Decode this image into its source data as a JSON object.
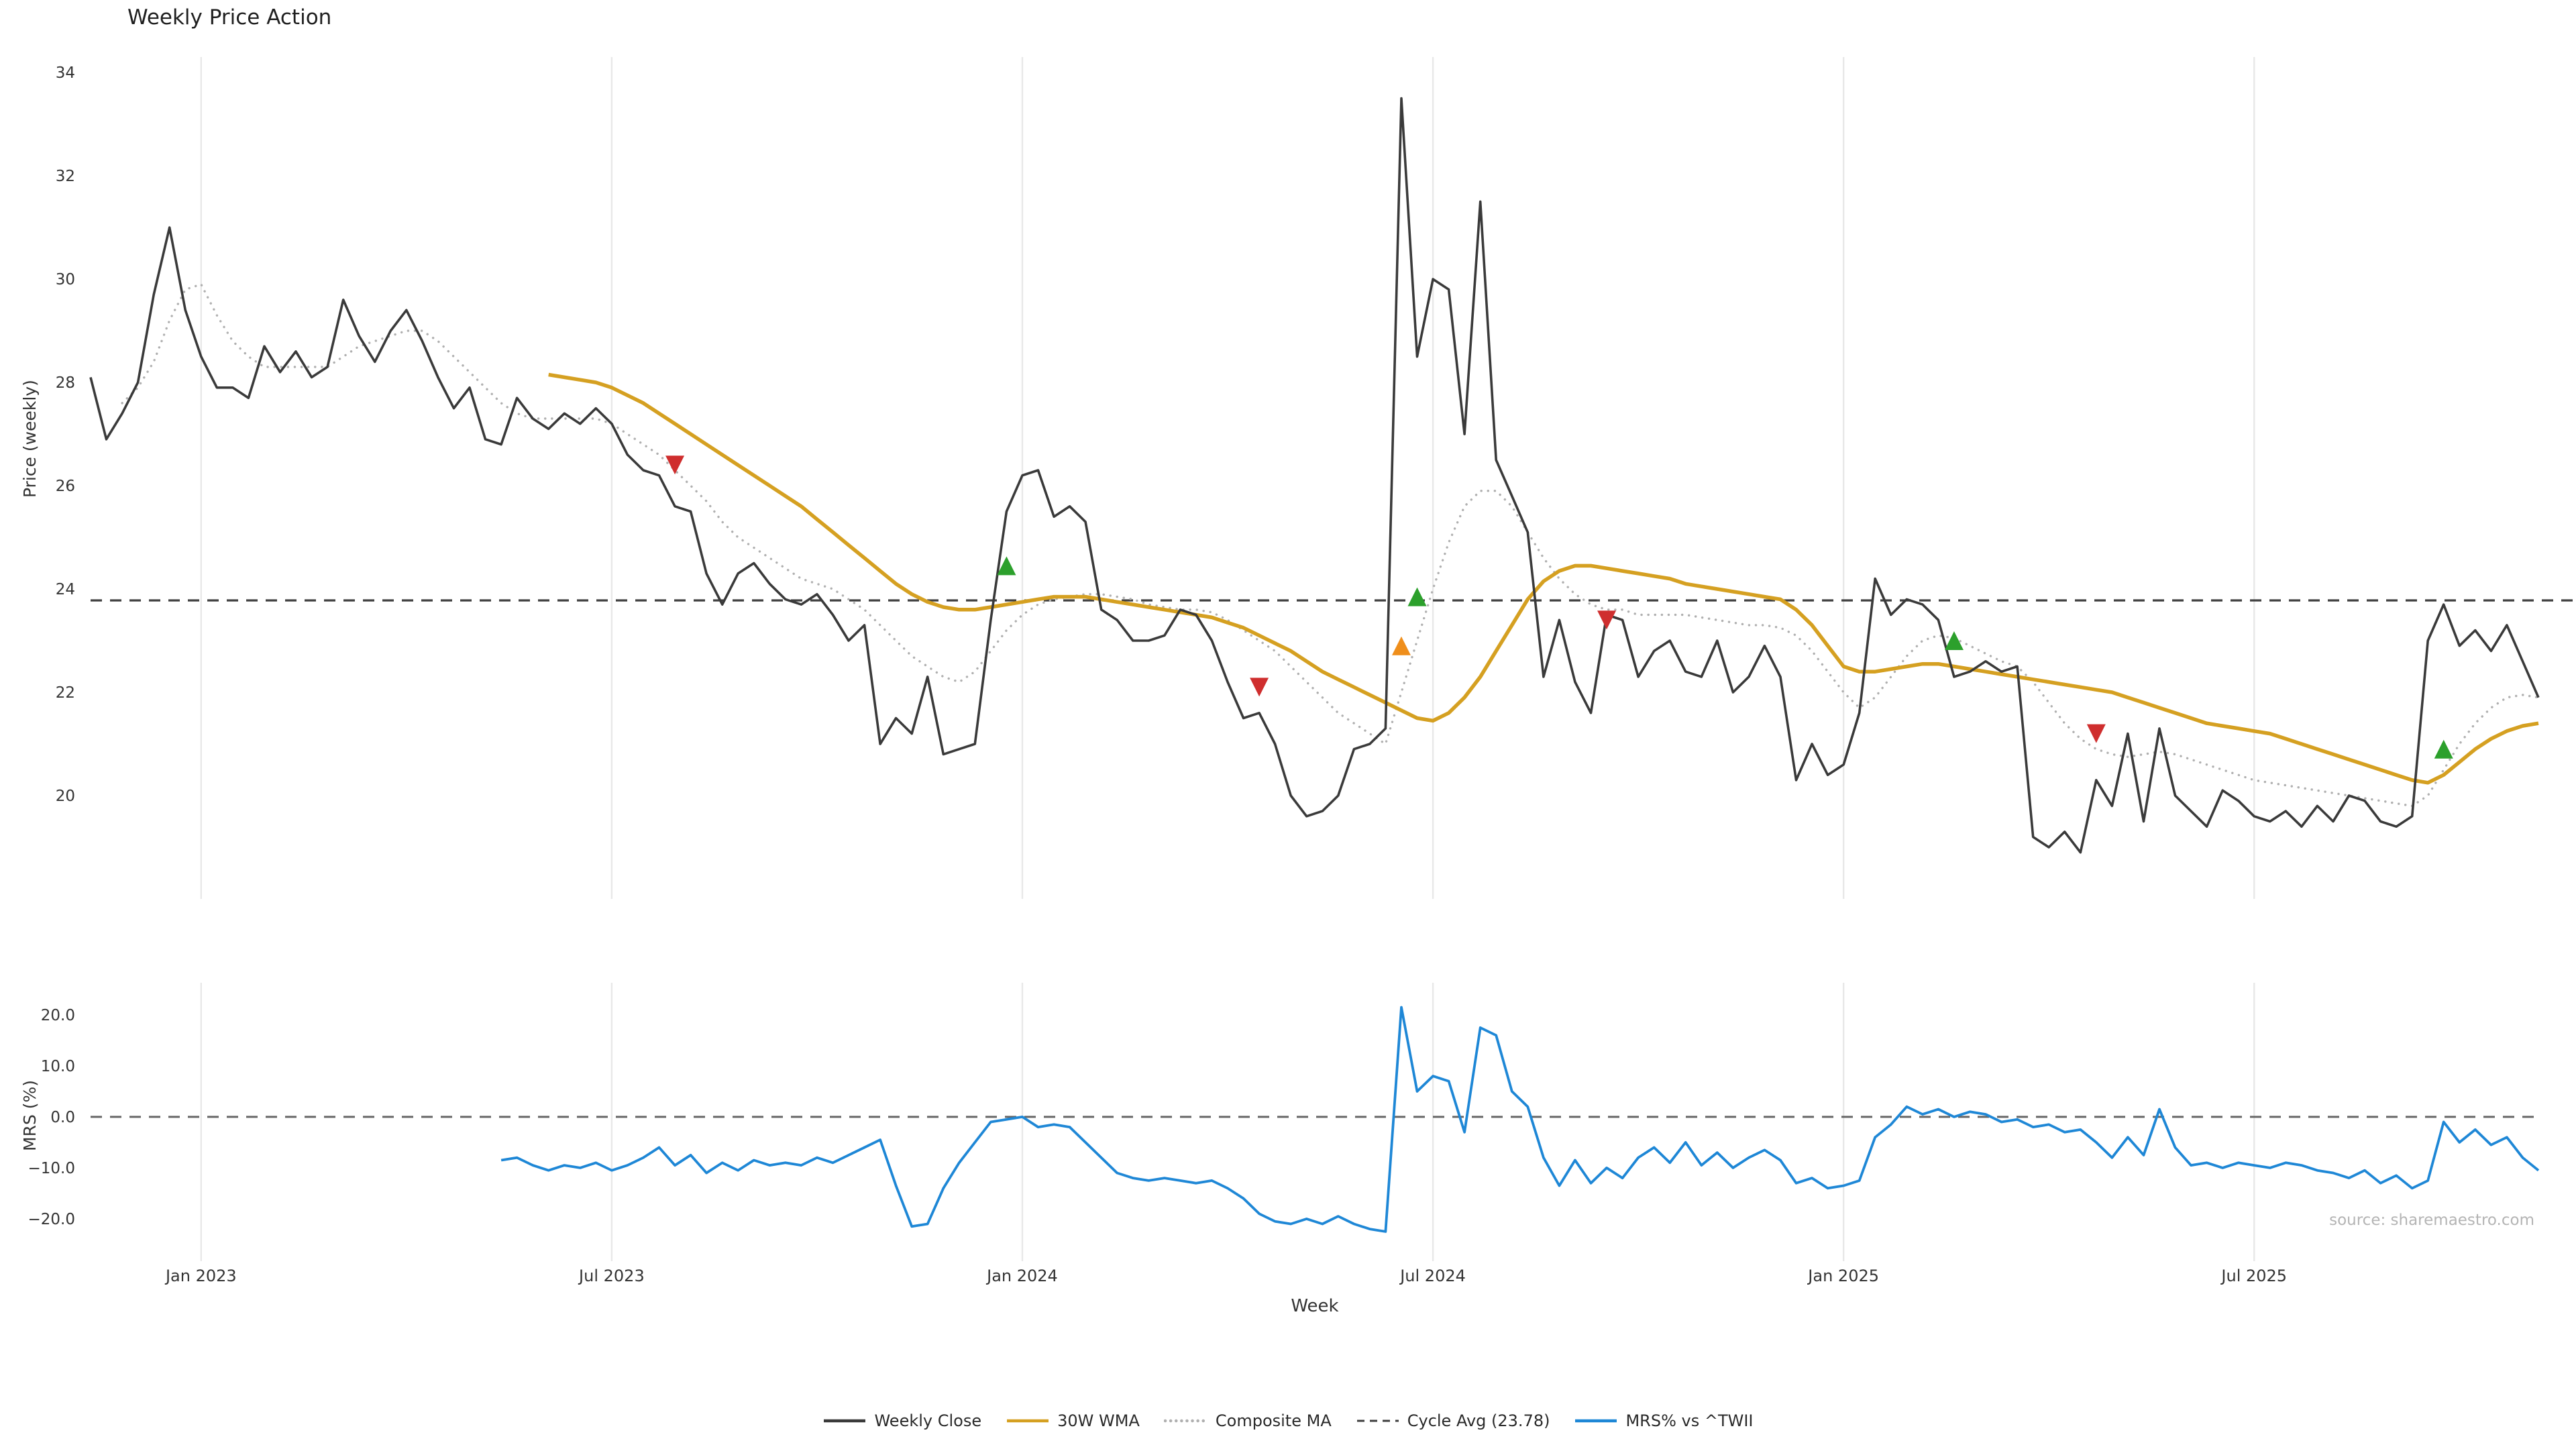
{
  "chart_data": {
    "type": "line",
    "title": "Weekly Price Action",
    "source": "source: sharemaestro.com",
    "xlabel": "Week",
    "weeks": 156,
    "x_tick_labels": [
      "Jan 2023",
      "Jul 2023",
      "Jan 2024",
      "Jul 2024",
      "Jan 2025",
      "Jul 2025"
    ],
    "x_tick_indices": [
      7,
      33,
      59,
      85,
      111,
      137
    ],
    "grid_color": "#e8e8e8",
    "panels": [
      {
        "name": "price",
        "ylabel": "Price (weekly)",
        "ylim": [
          18.0,
          34.3
        ],
        "yticks": [
          20,
          22,
          24,
          26,
          28,
          30,
          32,
          34
        ],
        "ytick_labels": [
          "20",
          "22",
          "24",
          "26",
          "28",
          "30",
          "32",
          "34"
        ],
        "cycle_avg": 23.78,
        "cycle_avg_color": "#3f3f3f",
        "series": [
          {
            "name": "Weekly Close",
            "color": "#3a3a3a",
            "style": "solid",
            "values": [
              28.1,
              26.9,
              27.4,
              28.0,
              29.7,
              31.0,
              29.4,
              28.5,
              27.9,
              27.9,
              27.7,
              28.7,
              28.2,
              28.6,
              28.1,
              28.3,
              29.6,
              28.9,
              28.4,
              29.0,
              29.4,
              28.8,
              28.1,
              27.5,
              27.9,
              26.9,
              26.8,
              27.7,
              27.3,
              27.1,
              27.4,
              27.2,
              27.5,
              27.2,
              26.6,
              26.3,
              26.2,
              25.6,
              25.5,
              24.3,
              23.7,
              24.3,
              24.5,
              24.1,
              23.8,
              23.7,
              23.9,
              23.5,
              23.0,
              23.3,
              21.0,
              21.5,
              21.2,
              22.3,
              20.8,
              20.9,
              21.0,
              23.4,
              25.5,
              26.2,
              26.3,
              25.4,
              25.6,
              25.3,
              23.6,
              23.4,
              23.0,
              23.0,
              23.1,
              23.6,
              23.5,
              23.0,
              22.2,
              21.5,
              21.6,
              21.0,
              20.0,
              19.6,
              19.7,
              20.0,
              20.9,
              21.0,
              21.3,
              33.5,
              28.5,
              30.0,
              29.8,
              27.0,
              31.5,
              26.5,
              25.8,
              25.1,
              22.3,
              23.4,
              22.2,
              21.6,
              23.5,
              23.4,
              22.3,
              22.8,
              23.0,
              22.4,
              22.3,
              23.0,
              22.0,
              22.3,
              22.9,
              22.3,
              20.3,
              21.0,
              20.4,
              20.6,
              21.6,
              24.2,
              23.5,
              23.8,
              23.7,
              23.4,
              22.3,
              22.4,
              22.6,
              22.4,
              22.5,
              19.2,
              19.0,
              19.3,
              18.9,
              20.3,
              19.8,
              21.2,
              19.5,
              21.3,
              20.0,
              19.7,
              19.4,
              20.1,
              19.9,
              19.6,
              19.5,
              19.7,
              19.4,
              19.8,
              19.5,
              20.0,
              19.9,
              19.5,
              19.4,
              19.6,
              23.0,
              23.7,
              22.9,
              23.2,
              22.8,
              23.3,
              22.6,
              21.9
            ]
          },
          {
            "name": "30W WMA",
            "color": "#d5a021",
            "style": "solid",
            "values": [
              null,
              null,
              null,
              null,
              null,
              null,
              null,
              null,
              null,
              null,
              null,
              null,
              null,
              null,
              null,
              null,
              null,
              null,
              null,
              null,
              null,
              null,
              null,
              null,
              null,
              null,
              null,
              null,
              null,
              28.15,
              28.1,
              28.05,
              28.0,
              27.9,
              27.75,
              27.6,
              27.4,
              27.2,
              27.0,
              26.8,
              26.6,
              26.4,
              26.2,
              26.0,
              25.8,
              25.6,
              25.35,
              25.1,
              24.85,
              24.6,
              24.35,
              24.1,
              23.9,
              23.75,
              23.65,
              23.6,
              23.6,
              23.65,
              23.7,
              23.75,
              23.8,
              23.85,
              23.85,
              23.85,
              23.8,
              23.75,
              23.7,
              23.65,
              23.6,
              23.55,
              23.5,
              23.45,
              23.35,
              23.25,
              23.1,
              22.95,
              22.8,
              22.6,
              22.4,
              22.25,
              22.1,
              21.95,
              21.8,
              21.65,
              21.5,
              21.45,
              21.6,
              21.9,
              22.3,
              22.8,
              23.3,
              23.8,
              24.15,
              24.35,
              24.45,
              24.45,
              24.4,
              24.35,
              24.3,
              24.25,
              24.2,
              24.1,
              24.05,
              24.0,
              23.95,
              23.9,
              23.85,
              23.8,
              23.6,
              23.3,
              22.9,
              22.5,
              22.4,
              22.4,
              22.45,
              22.5,
              22.55,
              22.55,
              22.5,
              22.45,
              22.4,
              22.35,
              22.3,
              22.25,
              22.2,
              22.15,
              22.1,
              22.05,
              22.0,
              21.9,
              21.8,
              21.7,
              21.6,
              21.5,
              21.4,
              21.35,
              21.3,
              21.25,
              21.2,
              21.1,
              21.0,
              20.9,
              20.8,
              20.7,
              20.6,
              20.5,
              20.4,
              20.3,
              20.25,
              20.4,
              20.65,
              20.9,
              21.1,
              21.25,
              21.35,
              21.4
            ]
          },
          {
            "name": "Composite MA",
            "color": "#b0b0b0",
            "style": "dotted",
            "values": [
              null,
              null,
              27.6,
              27.9,
              28.4,
              29.2,
              29.8,
              29.9,
              29.3,
              28.8,
              28.5,
              28.3,
              28.3,
              28.3,
              28.3,
              28.3,
              28.5,
              28.7,
              28.8,
              28.9,
              29.0,
              29.0,
              28.8,
              28.5,
              28.2,
              27.9,
              27.6,
              27.4,
              27.3,
              27.3,
              27.3,
              27.3,
              27.3,
              27.2,
              27.0,
              26.8,
              26.6,
              26.3,
              26.0,
              25.7,
              25.3,
              25.0,
              24.8,
              24.6,
              24.4,
              24.2,
              24.1,
              24.0,
              23.8,
              23.6,
              23.3,
              23.0,
              22.7,
              22.5,
              22.3,
              22.2,
              22.4,
              22.8,
              23.2,
              23.5,
              23.7,
              23.8,
              23.85,
              23.9,
              23.9,
              23.85,
              23.8,
              23.7,
              23.65,
              23.6,
              23.6,
              23.55,
              23.4,
              23.2,
              23.0,
              22.8,
              22.5,
              22.2,
              21.9,
              21.6,
              21.4,
              21.2,
              21.0,
              22.0,
              23.0,
              24.0,
              24.9,
              25.6,
              25.9,
              25.9,
              25.6,
              25.1,
              24.6,
              24.2,
              23.9,
              23.7,
              23.6,
              23.6,
              23.5,
              23.5,
              23.5,
              23.5,
              23.45,
              23.4,
              23.35,
              23.3,
              23.3,
              23.25,
              23.1,
              22.8,
              22.4,
              22.0,
              21.7,
              21.9,
              22.3,
              22.7,
              23.0,
              23.1,
              23.05,
              22.9,
              22.75,
              22.6,
              22.5,
              22.2,
              21.8,
              21.4,
              21.1,
              20.9,
              20.8,
              20.75,
              20.8,
              20.85,
              20.8,
              20.7,
              20.6,
              20.5,
              20.4,
              20.3,
              20.25,
              20.2,
              20.15,
              20.1,
              20.05,
              20.0,
              19.95,
              19.9,
              19.85,
              19.8,
              20.0,
              20.5,
              21.0,
              21.4,
              21.7,
              21.9,
              21.95,
              21.9
            ]
          }
        ],
        "signals": [
          {
            "index": 37,
            "value": 26.4,
            "type": "sell",
            "dir": "down",
            "color": "#cf2e2e"
          },
          {
            "index": 58,
            "value": 24.45,
            "type": "buy",
            "dir": "up",
            "color": "#2ca02c"
          },
          {
            "index": 74,
            "value": 22.1,
            "type": "sell",
            "dir": "down",
            "color": "#cf2e2e"
          },
          {
            "index": 83,
            "value": 22.9,
            "type": "alert",
            "dir": "up",
            "color": "#ef8e1b"
          },
          {
            "index": 84,
            "value": 23.85,
            "type": "buy",
            "dir": "up",
            "color": "#2ca02c"
          },
          {
            "index": 96,
            "value": 23.4,
            "type": "sell",
            "dir": "down",
            "color": "#cf2e2e"
          },
          {
            "index": 118,
            "value": 23.0,
            "type": "buy",
            "dir": "up",
            "color": "#2ca02c"
          },
          {
            "index": 127,
            "value": 21.2,
            "type": "sell",
            "dir": "down",
            "color": "#cf2e2e"
          },
          {
            "index": 149,
            "value": 20.9,
            "type": "buy",
            "dir": "up",
            "color": "#2ca02c"
          }
        ]
      },
      {
        "name": "mrs",
        "ylabel": "MRS (%)",
        "ylim": [
          -28.3,
          26.3
        ],
        "yticks": [
          20,
          10,
          0,
          -10,
          -20
        ],
        "ytick_labels": [
          "20.0",
          "10.0",
          "0.0",
          "−10.0",
          "−20.0"
        ],
        "zero_line": 0,
        "zero_line_color": "#666666",
        "series": [
          {
            "name": "MRS% vs ^TWII",
            "color": "#1e87d6",
            "style": "solid",
            "values": [
              null,
              null,
              null,
              null,
              null,
              null,
              null,
              null,
              null,
              null,
              null,
              null,
              null,
              null,
              null,
              null,
              null,
              null,
              null,
              null,
              null,
              null,
              null,
              null,
              null,
              null,
              -8.5,
              -8.0,
              -9.5,
              -10.5,
              -9.5,
              -10.0,
              -9.0,
              -10.5,
              -9.5,
              -8.0,
              -6.0,
              -9.5,
              -7.5,
              -11.0,
              -9.0,
              -10.5,
              -8.5,
              -9.5,
              -9.0,
              -9.5,
              -8.0,
              -9.0,
              -7.5,
              -6.0,
              -4.5,
              -13.5,
              -21.5,
              -21.0,
              -14.0,
              -9.0,
              -5.0,
              -1.0,
              -0.5,
              0.0,
              -2.0,
              -1.5,
              -2.0,
              -5.0,
              -8.0,
              -11.0,
              -12.0,
              -12.5,
              -12.0,
              -12.5,
              -13.0,
              -12.5,
              -14.0,
              -16.0,
              -19.0,
              -20.5,
              -21.0,
              -20.0,
              -21.0,
              -19.5,
              -21.0,
              -22.0,
              -22.5,
              21.5,
              5.0,
              8.0,
              7.0,
              -3.0,
              17.5,
              16.0,
              5.0,
              2.0,
              -8.0,
              -13.5,
              -8.5,
              -13.0,
              -10.0,
              -12.0,
              -8.0,
              -6.0,
              -9.0,
              -5.0,
              -9.5,
              -7.0,
              -10.0,
              -8.0,
              -6.5,
              -8.5,
              -13.0,
              -12.0,
              -14.0,
              -13.5,
              -12.5,
              -4.0,
              -1.5,
              2.0,
              0.5,
              1.5,
              0.0,
              1.0,
              0.5,
              -1.0,
              -0.5,
              -2.0,
              -1.5,
              -3.0,
              -2.5,
              -5.0,
              -8.0,
              -4.0,
              -7.5,
              1.5,
              -6.0,
              -9.5,
              -9.0,
              -10.0,
              -9.0,
              -9.5,
              -10.0,
              -9.0,
              -9.5,
              -10.5,
              -11.0,
              -12.0,
              -10.5,
              -13.0,
              -11.5,
              -14.0,
              -12.5,
              -1.0,
              -5.0,
              -2.5,
              -5.5,
              -4.0,
              -8.0,
              -10.5
            ]
          }
        ]
      }
    ],
    "legend": [
      {
        "label": "Weekly Close",
        "color": "#3a3a3a",
        "style": "solid"
      },
      {
        "label": "30W WMA",
        "color": "#d5a021",
        "style": "solid"
      },
      {
        "label": "Composite MA",
        "color": "#b0b0b0",
        "style": "dotted"
      },
      {
        "label": "Cycle Avg (23.78)",
        "color": "#3f3f3f",
        "style": "dashed"
      },
      {
        "label": "MRS% vs ^TWII",
        "color": "#1e87d6",
        "style": "solid"
      }
    ]
  }
}
